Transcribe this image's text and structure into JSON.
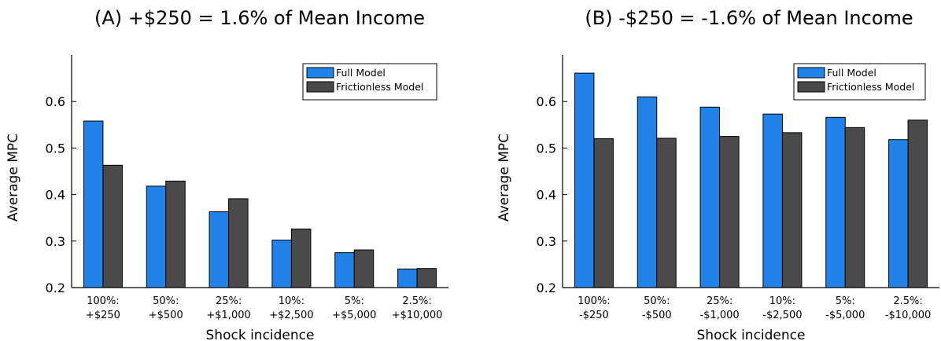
{
  "chart_data": [
    {
      "type": "bar",
      "title": "(A) +$250 = 1.6% of Mean Income",
      "xlabel": "Shock incidence",
      "ylabel": "Average MPC",
      "ylim": [
        0.2,
        0.7
      ],
      "yticks": [
        "0.2",
        "0.3",
        "0.4",
        "0.5",
        "0.6"
      ],
      "categories": [
        [
          "100%:",
          "+$250"
        ],
        [
          "50%:",
          "+$500"
        ],
        [
          "25%:",
          "+$1,000"
        ],
        [
          "10%:",
          "+$2,500"
        ],
        [
          "5%:",
          "+$5,000"
        ],
        [
          "2.5%:",
          "+$10,000"
        ]
      ],
      "series": [
        {
          "name": "Full Model",
          "color": "#1f83e8",
          "values": [
            0.558,
            0.418,
            0.363,
            0.302,
            0.275,
            0.24
          ]
        },
        {
          "name": "Frictionless Model",
          "color": "#4a4a4a",
          "values": [
            0.463,
            0.429,
            0.391,
            0.326,
            0.281,
            0.241
          ]
        }
      ],
      "legend_position": "top-right",
      "grid": false
    },
    {
      "type": "bar",
      "title": "(B) -$250 = -1.6% of Mean Income",
      "xlabel": "Shock incidence",
      "ylabel": "Average MPC",
      "ylim": [
        0.2,
        0.7
      ],
      "yticks": [
        "0.2",
        "0.3",
        "0.4",
        "0.5",
        "0.6"
      ],
      "categories": [
        [
          "100%:",
          "-$250"
        ],
        [
          "50%:",
          "-$500"
        ],
        [
          "25%:",
          "-$1,000"
        ],
        [
          "10%:",
          "-$2,500"
        ],
        [
          "5%:",
          "-$5,000"
        ],
        [
          "2.5%:",
          "-$10,000"
        ]
      ],
      "series": [
        {
          "name": "Full Model",
          "color": "#1f83e8",
          "values": [
            0.661,
            0.61,
            0.588,
            0.573,
            0.566,
            0.518
          ]
        },
        {
          "name": "Frictionless Model",
          "color": "#4a4a4a",
          "values": [
            0.52,
            0.521,
            0.525,
            0.533,
            0.544,
            0.56
          ]
        }
      ],
      "legend_position": "top-right",
      "grid": false
    }
  ]
}
